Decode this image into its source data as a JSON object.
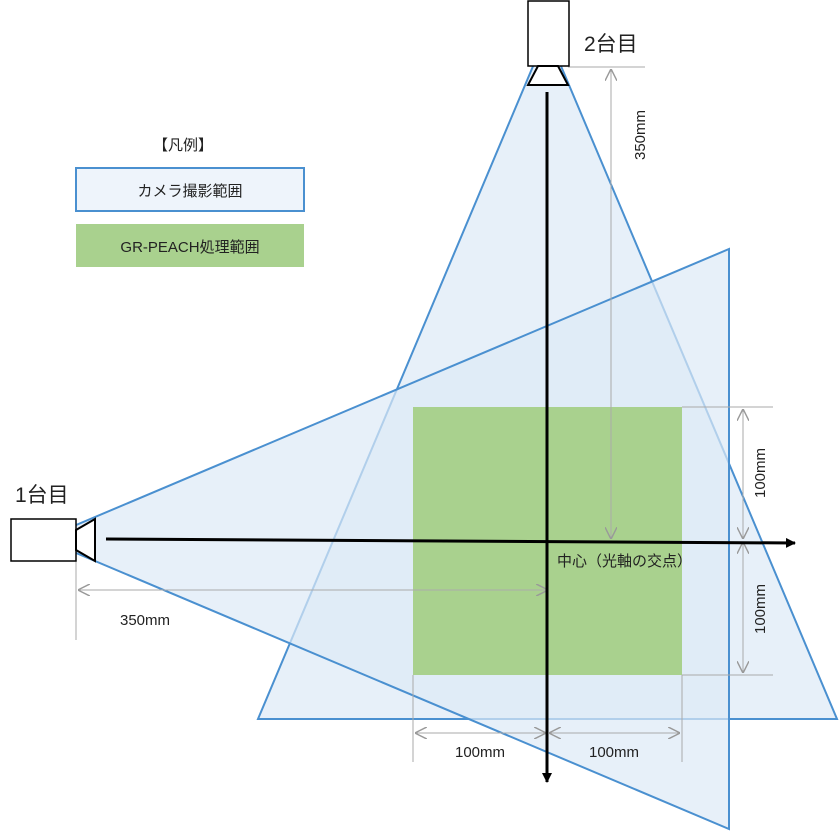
{
  "labels": {
    "camera2": "2台目",
    "camera1": "1台目",
    "legend_title": "【凡例】",
    "legend_camera": "カメラ撮影範囲",
    "legend_gr": "GR-PEACH処理範囲",
    "center": "中心（光軸の交点）",
    "dim_350_vertical": "350mm",
    "dim_350_horizontal": "350mm",
    "dim_100_upper": "100mm",
    "dim_100_lower": "100mm",
    "dim_100_left": "100mm",
    "dim_100_right": "100mm"
  },
  "colors": {
    "camera_fill": "#dde9f6",
    "camera_stroke": "#4a90d0",
    "gr_fill": "#a9d18e",
    "axis": "#000000",
    "dimension": "#aaaaaa"
  }
}
